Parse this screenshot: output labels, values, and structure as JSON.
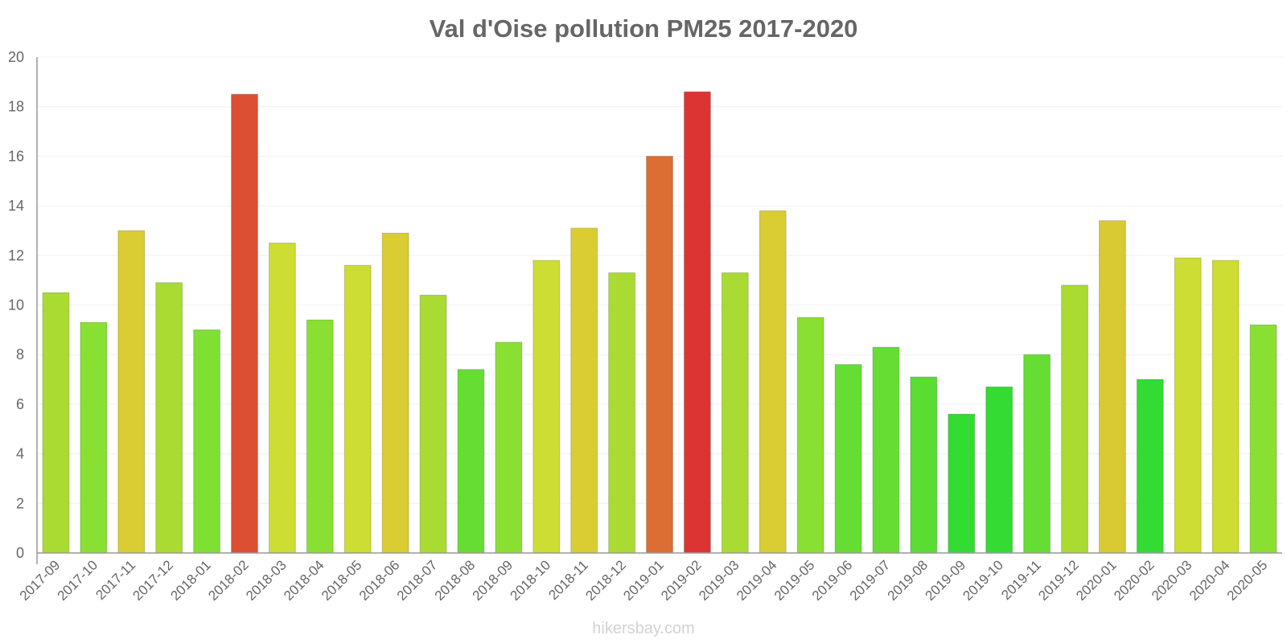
{
  "chart_data": {
    "type": "bar",
    "title": "Val d'Oise pollution PM25 2017-2020",
    "xlabel": "",
    "ylabel": "",
    "ylim": [
      0,
      20
    ],
    "yticks": [
      0,
      2,
      4,
      6,
      8,
      10,
      12,
      14,
      16,
      18,
      20
    ],
    "grid": true,
    "categories": [
      "2017-09",
      "2017-10",
      "2017-11",
      "2017-12",
      "2018-01",
      "2018-02",
      "2018-03",
      "2018-04",
      "2018-05",
      "2018-06",
      "2018-07",
      "2018-08",
      "2018-09",
      "2018-10",
      "2018-11",
      "2018-12",
      "2019-01",
      "2019-02",
      "2019-03",
      "2019-04",
      "2019-05",
      "2019-06",
      "2019-07",
      "2019-08",
      "2019-09",
      "2019-10",
      "2019-11",
      "2019-12",
      "2020-01",
      "2020-02",
      "2020-03",
      "2020-04",
      "2020-05"
    ],
    "values": [
      10.5,
      9.3,
      13.0,
      10.9,
      9.0,
      18.5,
      12.5,
      9.4,
      11.6,
      12.9,
      10.4,
      7.4,
      8.5,
      11.8,
      13.1,
      11.3,
      16.0,
      18.6,
      11.3,
      13.8,
      9.5,
      7.6,
      8.3,
      7.1,
      5.6,
      6.7,
      8.0,
      10.8,
      13.4,
      7.0,
      11.9,
      11.8,
      9.2
    ],
    "bar_colors": [
      "#a9db33",
      "#8adf33",
      "#d9cd33",
      "#a9db33",
      "#7fe033",
      "#dc4f33",
      "#cddd33",
      "#8adf33",
      "#cddd33",
      "#d9cd33",
      "#a9db33",
      "#66dd33",
      "#8adf33",
      "#cddd33",
      "#d9cd33",
      "#a9db33",
      "#dc6e33",
      "#dc3433",
      "#a9db33",
      "#d9cd33",
      "#8adf33",
      "#66dd33",
      "#66dd33",
      "#5bdc33",
      "#33db33",
      "#33db33",
      "#66dd33",
      "#a9db33",
      "#d9c933",
      "#33db33",
      "#cddd33",
      "#cddd33",
      "#8adf33"
    ],
    "footer": "hikersbay.com"
  }
}
